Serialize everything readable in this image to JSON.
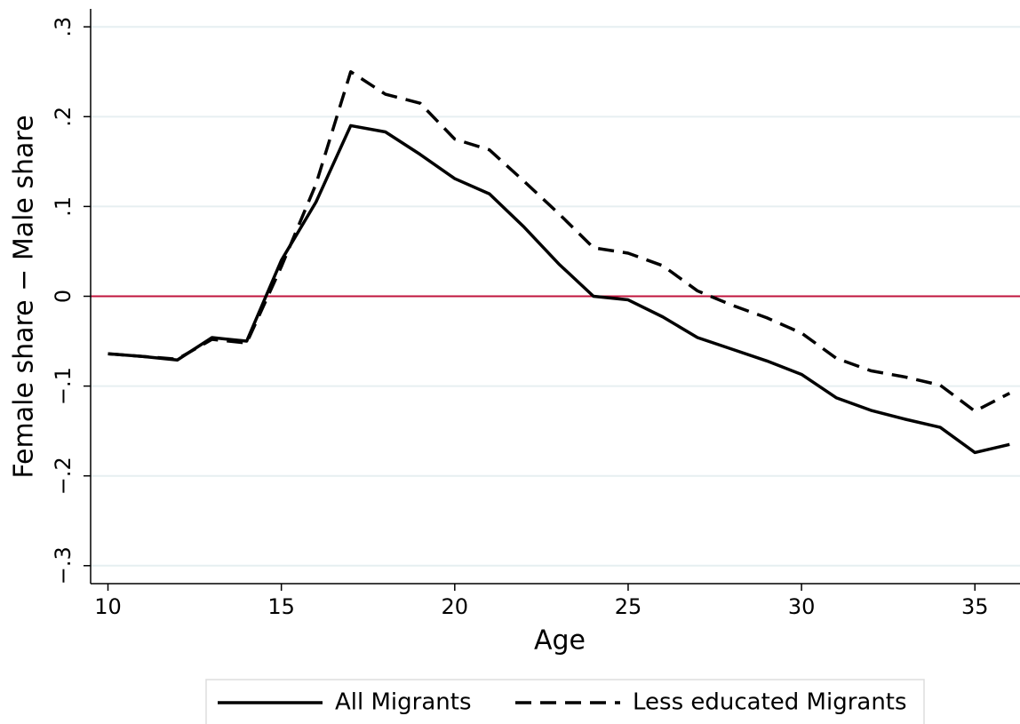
{
  "chart_data": {
    "type": "line",
    "x_label": "Age",
    "y_label": "Female share − Male share",
    "x": [
      10,
      11,
      12,
      13,
      14,
      15,
      16,
      17,
      18,
      19,
      20,
      21,
      22,
      23,
      24,
      25,
      26,
      27,
      28,
      29,
      30,
      31,
      32,
      33,
      34,
      35,
      36
    ],
    "series": [
      {
        "name": "All Migrants",
        "color": "#000000",
        "dash": "solid",
        "values": [
          -0.064,
          -0.067,
          -0.071,
          -0.046,
          -0.05,
          0.04,
          0.105,
          0.19,
          0.183,
          0.158,
          0.131,
          0.114,
          0.077,
          0.036,
          0.0,
          -0.004,
          -0.023,
          -0.046,
          -0.059,
          -0.072,
          -0.087,
          -0.113,
          -0.127,
          -0.137,
          -0.146,
          -0.174,
          -0.165
        ]
      },
      {
        "name": "Less educated Migrants",
        "color": "#000000",
        "dash": "dashed",
        "values": [
          -0.064,
          -0.067,
          -0.07,
          -0.048,
          -0.052,
          0.033,
          0.125,
          0.25,
          0.225,
          0.215,
          0.175,
          0.163,
          0.128,
          0.092,
          0.054,
          0.048,
          0.034,
          0.006,
          -0.01,
          -0.024,
          -0.041,
          -0.069,
          -0.083,
          -0.09,
          -0.099,
          -0.128,
          -0.108
        ]
      }
    ],
    "xlim": [
      9.5,
      36.3
    ],
    "ylim": [
      -0.32,
      0.32
    ],
    "xticks": [
      10,
      15,
      20,
      25,
      30,
      35
    ],
    "yticks": [
      {
        "value": -0.3,
        "label": "−.3"
      },
      {
        "value": -0.2,
        "label": "−.2"
      },
      {
        "value": -0.1,
        "label": "−.1"
      },
      0,
      {
        "value": 0.1,
        "label": ".1"
      },
      {
        "value": 0.2,
        "label": ".2"
      },
      {
        "value": 0.3,
        "label": ".3"
      }
    ],
    "grid": true,
    "grid_color": "#e6eff1",
    "reference_line": {
      "value": 0,
      "color": "#c0143c"
    },
    "legend": "bottom"
  }
}
